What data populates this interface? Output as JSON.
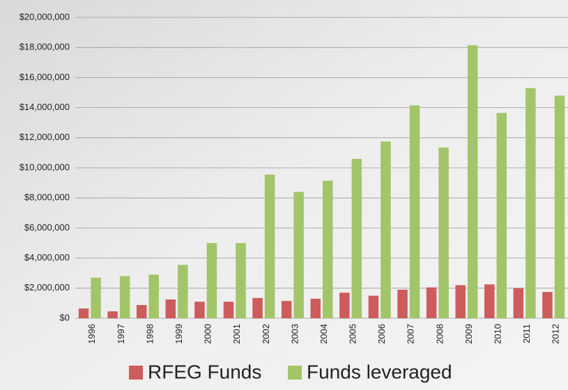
{
  "chart_data": {
    "type": "bar",
    "categories": [
      "1996",
      "1997",
      "1998",
      "1999",
      "2000",
      "2001",
      "2002",
      "2003",
      "2004",
      "2005",
      "2006",
      "2007",
      "2008",
      "2009",
      "2010",
      "2011",
      "2012"
    ],
    "series": [
      {
        "name": "RFEG Funds",
        "color": "#cd5c5c",
        "values": [
          650000,
          460000,
          880000,
          1250000,
          1100000,
          1100000,
          1350000,
          1150000,
          1300000,
          1700000,
          1500000,
          1900000,
          2050000,
          2200000,
          2250000,
          2000000,
          1750000
        ]
      },
      {
        "name": "Funds leveraged",
        "color": "#a3c56a",
        "values": [
          2700000,
          2800000,
          2900000,
          3550000,
          5000000,
          5000000,
          9550000,
          8400000,
          9150000,
          10600000,
          11750000,
          14150000,
          11350000,
          18150000,
          13650000,
          15300000,
          14800000
        ]
      }
    ],
    "ylim": [
      0,
      20000000
    ],
    "yticks": [
      {
        "value": 0,
        "label": "$0"
      },
      {
        "value": 2000000,
        "label": "$2,000,000"
      },
      {
        "value": 4000000,
        "label": "$4,000,000"
      },
      {
        "value": 6000000,
        "label": "$6,000,000"
      },
      {
        "value": 8000000,
        "label": "$8,000,000"
      },
      {
        "value": 10000000,
        "label": "$10,000,000"
      },
      {
        "value": 12000000,
        "label": "$12,000,000"
      },
      {
        "value": 14000000,
        "label": "$14,000,000"
      },
      {
        "value": 16000000,
        "label": "$16,000,000"
      },
      {
        "value": 18000000,
        "label": "$18,000,000"
      },
      {
        "value": 20000000,
        "label": "$20,000,000"
      }
    ],
    "grid": true
  }
}
